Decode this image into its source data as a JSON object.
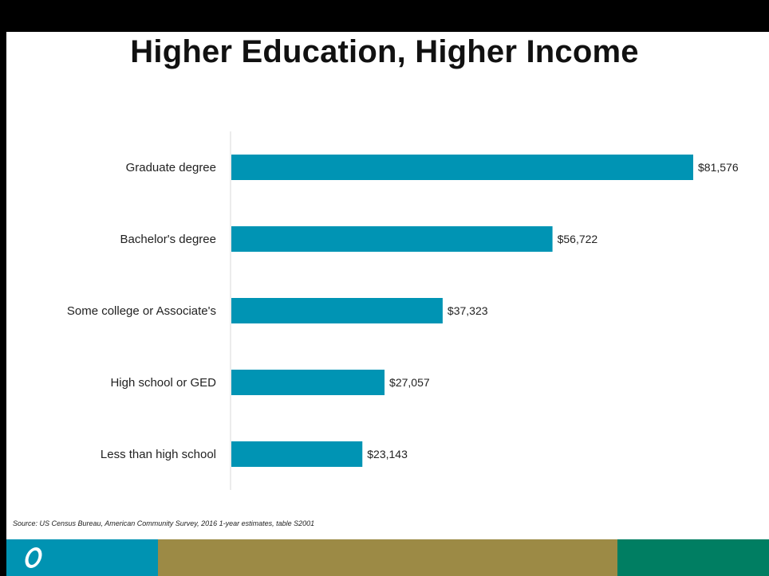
{
  "title": "Higher Education, Higher Income",
  "source": "Source: US Census Bureau, American Community Survey, 2016 1-year estimates, table S2001",
  "colors": {
    "bar": "#0094B4",
    "footer_left": "#0093B2",
    "footer_mid": "#9C8A45",
    "footer_right": "#007E62",
    "axis": "#D9D9D9"
  },
  "footer": {
    "logo_icon": "ring-logo-icon"
  },
  "chart_data": {
    "type": "bar",
    "orientation": "horizontal",
    "title": "Higher Education, Higher Income",
    "categories": [
      "Graduate degree",
      "Bachelor's degree",
      "Some college or Associate's",
      "High school or GED",
      "Less than high school"
    ],
    "values": [
      81576,
      56722,
      37323,
      27057,
      23143
    ],
    "value_labels": [
      "$81,576",
      "$56,722",
      "$37,323",
      "$27,057",
      "$23,143"
    ],
    "xlim": [
      0,
      81576
    ],
    "grid": false,
    "legend": "none"
  }
}
